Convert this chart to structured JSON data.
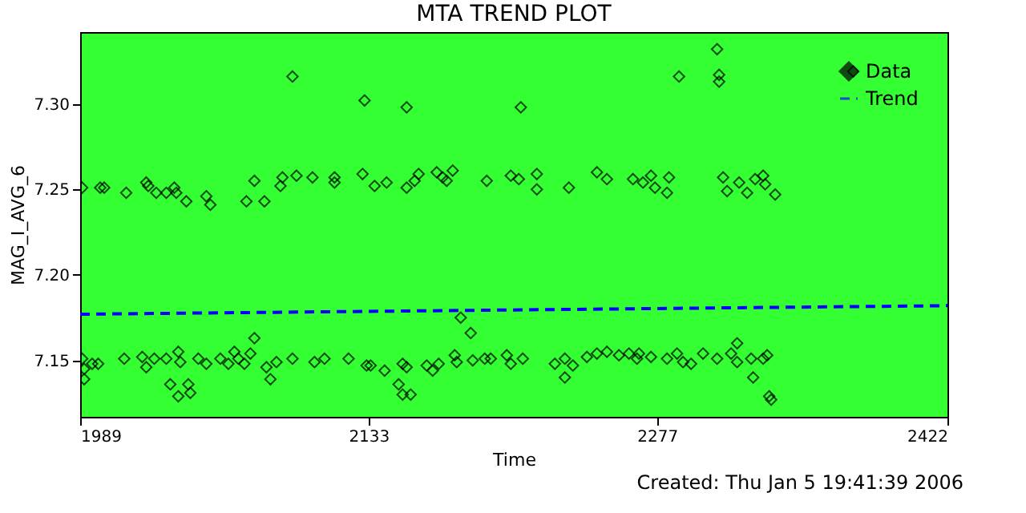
{
  "chart_data": {
    "type": "scatter",
    "title": "MTA TREND PLOT",
    "xlabel": "Time",
    "ylabel": "MAG_I_AVG_6",
    "annotations": [
      "Created: Thu Jan  5 19:41:39 2006"
    ],
    "xlim": [
      1989,
      2422
    ],
    "xticks": [
      1989,
      2133,
      2277,
      2422
    ],
    "ylim": [
      7.117,
      7.342
    ],
    "yticks": [
      7.15,
      {
        "value": 7.2,
        "label": "7.20"
      },
      7.25,
      {
        "value": 7.3,
        "label": "7.30"
      }
    ],
    "grid": false,
    "legend": "top right",
    "series": [
      {
        "name": "Data",
        "color": "#000000",
        "marker": "diamond",
        "x": [
          1990,
          1999,
          2001,
          2012,
          2022,
          2023,
          2027,
          2032,
          2036,
          2037,
          2042,
          2052,
          2054,
          2072,
          2076,
          2081,
          2089,
          2090,
          2097,
          2105,
          2116,
          2116,
          2130,
          2095,
          2131,
          1990,
          1991,
          1991,
          1995,
          1998,
          2011,
          2020,
          2022,
          2026,
          2032,
          2034,
          2038,
          2039,
          2038,
          2043,
          2044,
          2048,
          2052,
          2059,
          2063,
          2066,
          2068,
          2071,
          2074,
          2076,
          2082,
          2084,
          2087,
          2095,
          2106,
          2111,
          2123,
          2132,
          2136,
          2142,
          2152,
          2156,
          2158,
          2167,
          2170,
          2175,
          2172,
          2192,
          2204,
          2208,
          2217,
          2217,
          2233,
          2247,
          2252,
          2265,
          2152,
          2209,
          2134,
          2141,
          2150,
          2152,
          2162,
          2165,
          2168,
          2176,
          2177,
          2185,
          2191,
          2194,
          2202,
          2204,
          2210,
          2226,
          2231,
          2231,
          2235,
          2242,
          2247,
          2252,
          2258,
          2263,
          2267,
          2179,
          2184,
          2148,
          2150,
          2154,
          2270,
          2274,
          2276,
          2282,
          2283,
          2310,
          2312,
          2318,
          2322,
          2326,
          2330,
          2331,
          2336,
          2288,
          2307,
          2308,
          2308,
          2375,
          2268,
          2274,
          2282,
          2287,
          2290,
          2294,
          2300,
          2307,
          2314,
          2317,
          2317,
          2324,
          2330,
          2332,
          2325,
          2333,
          2334
        ],
        "values": [
          7.251,
          7.251,
          7.251,
          7.248,
          7.254,
          7.252,
          7.248,
          7.248,
          7.251,
          7.248,
          7.243,
          7.246,
          7.241,
          7.243,
          7.255,
          7.243,
          7.252,
          7.257,
          7.258,
          7.257,
          7.257,
          7.254,
          7.259,
          7.316,
          7.302,
          7.151,
          7.145,
          7.139,
          7.148,
          7.148,
          7.151,
          7.152,
          7.146,
          7.151,
          7.151,
          7.136,
          7.155,
          7.149,
          7.129,
          7.136,
          7.131,
          7.151,
          7.148,
          7.151,
          7.148,
          7.155,
          7.151,
          7.148,
          7.154,
          7.163,
          7.146,
          7.139,
          7.149,
          7.151,
          7.149,
          7.151,
          7.151,
          7.147,
          7.252,
          7.254,
          7.251,
          7.255,
          7.259,
          7.26,
          7.257,
          7.261,
          7.255,
          7.255,
          7.258,
          7.256,
          7.259,
          7.25,
          7.251,
          7.26,
          7.256,
          7.256,
          7.298,
          7.298,
          7.147,
          7.144,
          7.148,
          7.146,
          7.147,
          7.144,
          7.148,
          7.153,
          7.149,
          7.15,
          7.151,
          7.151,
          7.153,
          7.148,
          7.151,
          7.148,
          7.14,
          7.151,
          7.147,
          7.152,
          7.154,
          7.155,
          7.153,
          7.154,
          7.151,
          7.175,
          7.166,
          7.136,
          7.13,
          7.13,
          7.254,
          7.258,
          7.251,
          7.248,
          7.257,
          7.257,
          7.249,
          7.254,
          7.248,
          7.256,
          7.258,
          7.253,
          7.247,
          7.316,
          7.332,
          7.317,
          7.313,
          7.319,
          7.154,
          7.152,
          7.151,
          7.154,
          7.149,
          7.148,
          7.154,
          7.151,
          7.154,
          7.16,
          7.149,
          7.151,
          7.151,
          7.153,
          7.14,
          7.129,
          7.127
        ]
      },
      {
        "name": "Trend",
        "type": "line",
        "color": "#0000ff",
        "line_style": "dashed",
        "x": [
          1989,
          2422
        ],
        "values": [
          7.177,
          7.182
        ]
      }
    ]
  }
}
